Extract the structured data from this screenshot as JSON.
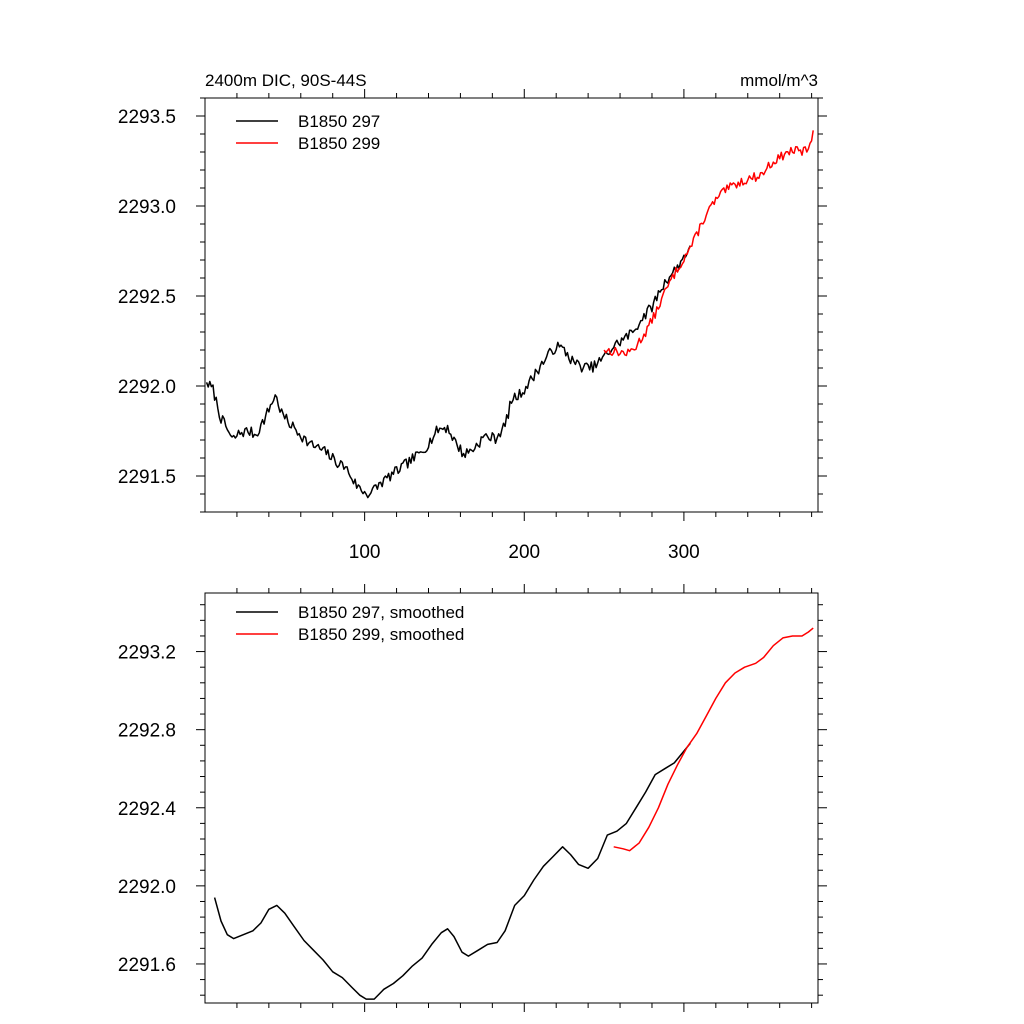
{
  "chart_data": [
    {
      "type": "line",
      "title": "2400m DIC, 90S-44S",
      "units": "mmol/m^3",
      "xlim": [
        0,
        384
      ],
      "ylim": [
        2291.3,
        2293.6
      ],
      "xticks": [
        100,
        200,
        300
      ],
      "xtick_labels": [
        "100",
        "200",
        "300"
      ],
      "yticks": [
        2291.5,
        2292.0,
        2292.5,
        2293.0,
        2293.5
      ],
      "ytick_labels": [
        "2291.5",
        "2292.0",
        "2292.5",
        "2293.0",
        "2293.5"
      ],
      "legend_position": "top-left",
      "series": [
        {
          "name": "B1850 297",
          "color": "#000000",
          "noise": 0.03,
          "seed": 7,
          "points": [
            [
              1,
              2292.02
            ],
            [
              5,
              2291.98
            ],
            [
              10,
              2291.82
            ],
            [
              14,
              2291.76
            ],
            [
              17,
              2291.7
            ],
            [
              22,
              2291.74
            ],
            [
              27,
              2291.75
            ],
            [
              32,
              2291.73
            ],
            [
              38,
              2291.83
            ],
            [
              44,
              2291.95
            ],
            [
              48,
              2291.85
            ],
            [
              52,
              2291.8
            ],
            [
              60,
              2291.73
            ],
            [
              65,
              2291.68
            ],
            [
              70,
              2291.66
            ],
            [
              76,
              2291.63
            ],
            [
              82,
              2291.58
            ],
            [
              88,
              2291.55
            ],
            [
              94,
              2291.46
            ],
            [
              98,
              2291.42
            ],
            [
              103,
              2291.4
            ],
            [
              110,
              2291.46
            ],
            [
              116,
              2291.5
            ],
            [
              122,
              2291.54
            ],
            [
              128,
              2291.58
            ],
            [
              134,
              2291.62
            ],
            [
              140,
              2291.68
            ],
            [
              146,
              2291.76
            ],
            [
              152,
              2291.77
            ],
            [
              156,
              2291.7
            ],
            [
              162,
              2291.62
            ],
            [
              168,
              2291.65
            ],
            [
              175,
              2291.72
            ],
            [
              182,
              2291.71
            ],
            [
              188,
              2291.78
            ],
            [
              192,
              2291.92
            ],
            [
              198,
              2291.96
            ],
            [
              204,
              2292.03
            ],
            [
              210,
              2292.11
            ],
            [
              215,
              2292.17
            ],
            [
              220,
              2292.22
            ],
            [
              225,
              2292.2
            ],
            [
              230,
              2292.14
            ],
            [
              235,
              2292.11
            ],
            [
              240,
              2292.1
            ],
            [
              244,
              2292.11
            ],
            [
              250,
              2292.16
            ],
            [
              256,
              2292.22
            ],
            [
              262,
              2292.26
            ],
            [
              268,
              2292.3
            ],
            [
              274,
              2292.38
            ],
            [
              280,
              2292.44
            ],
            [
              285,
              2292.53
            ],
            [
              290,
              2292.6
            ],
            [
              296,
              2292.66
            ],
            [
              300,
              2292.72
            ],
            [
              304,
              2292.78
            ]
          ]
        },
        {
          "name": "B1850 299",
          "color": "#ff0000",
          "noise": 0.025,
          "seed": 13,
          "points": [
            [
              250,
              2292.2
            ],
            [
              258,
              2292.19
            ],
            [
              265,
              2292.18
            ],
            [
              270,
              2292.22
            ],
            [
              276,
              2292.3
            ],
            [
              282,
              2292.4
            ],
            [
              288,
              2292.52
            ],
            [
              294,
              2292.62
            ],
            [
              300,
              2292.71
            ],
            [
              306,
              2292.8
            ],
            [
              312,
              2292.92
            ],
            [
              318,
              2293.01
            ],
            [
              325,
              2293.08
            ],
            [
              332,
              2293.12
            ],
            [
              340,
              2293.15
            ],
            [
              348,
              2293.17
            ],
            [
              355,
              2293.24
            ],
            [
              362,
              2293.28
            ],
            [
              368,
              2293.31
            ],
            [
              374,
              2293.3
            ],
            [
              378,
              2293.32
            ],
            [
              381,
              2293.42
            ]
          ]
        }
      ]
    },
    {
      "type": "line",
      "title": "",
      "units": "",
      "xlim": [
        0,
        384
      ],
      "ylim": [
        2291.4,
        2293.5
      ],
      "xticks": [
        100,
        200,
        300
      ],
      "xtick_labels": [
        "",
        "",
        ""
      ],
      "yticks": [
        2291.6,
        2292.0,
        2292.4,
        2292.8,
        2293.2
      ],
      "ytick_labels": [
        "2291.6",
        "2292.0",
        "2292.4",
        "2292.8",
        "2293.2"
      ],
      "legend_position": "top-left",
      "series": [
        {
          "name": "B1850 297, smoothed",
          "color": "#000000",
          "noise": 0,
          "seed": 0,
          "points": [
            [
              6,
              2291.94
            ],
            [
              10,
              2291.82
            ],
            [
              14,
              2291.75
            ],
            [
              18,
              2291.73
            ],
            [
              24,
              2291.75
            ],
            [
              30,
              2291.77
            ],
            [
              35,
              2291.81
            ],
            [
              40,
              2291.88
            ],
            [
              45,
              2291.9
            ],
            [
              50,
              2291.86
            ],
            [
              56,
              2291.79
            ],
            [
              62,
              2291.72
            ],
            [
              68,
              2291.67
            ],
            [
              74,
              2291.62
            ],
            [
              80,
              2291.56
            ],
            [
              86,
              2291.53
            ],
            [
              92,
              2291.48
            ],
            [
              97,
              2291.44
            ],
            [
              101,
              2291.42
            ],
            [
              106,
              2291.42
            ],
            [
              112,
              2291.47
            ],
            [
              118,
              2291.5
            ],
            [
              124,
              2291.54
            ],
            [
              130,
              2291.59
            ],
            [
              136,
              2291.63
            ],
            [
              142,
              2291.7
            ],
            [
              148,
              2291.76
            ],
            [
              152,
              2291.78
            ],
            [
              156,
              2291.74
            ],
            [
              161,
              2291.66
            ],
            [
              165,
              2291.64
            ],
            [
              171,
              2291.67
            ],
            [
              177,
              2291.7
            ],
            [
              183,
              2291.71
            ],
            [
              188,
              2291.77
            ],
            [
              194,
              2291.9
            ],
            [
              200,
              2291.95
            ],
            [
              206,
              2292.03
            ],
            [
              212,
              2292.1
            ],
            [
              218,
              2292.15
            ],
            [
              224,
              2292.2
            ],
            [
              229,
              2292.16
            ],
            [
              234,
              2292.11
            ],
            [
              240,
              2292.09
            ],
            [
              246,
              2292.14
            ],
            [
              252,
              2292.26
            ],
            [
              258,
              2292.28
            ],
            [
              264,
              2292.32
            ],
            [
              270,
              2292.4
            ],
            [
              276,
              2292.48
            ],
            [
              282,
              2292.57
            ],
            [
              288,
              2292.6
            ],
            [
              294,
              2292.63
            ],
            [
              300,
              2292.69
            ],
            [
              304,
              2292.73
            ]
          ]
        },
        {
          "name": "B1850 299, smoothed",
          "color": "#ff0000",
          "noise": 0,
          "seed": 0,
          "points": [
            [
              256,
              2292.2
            ],
            [
              262,
              2292.19
            ],
            [
              266,
              2292.18
            ],
            [
              272,
              2292.22
            ],
            [
              278,
              2292.3
            ],
            [
              284,
              2292.4
            ],
            [
              290,
              2292.52
            ],
            [
              296,
              2292.62
            ],
            [
              302,
              2292.71
            ],
            [
              308,
              2292.78
            ],
            [
              314,
              2292.87
            ],
            [
              320,
              2292.96
            ],
            [
              326,
              2293.04
            ],
            [
              332,
              2293.09
            ],
            [
              338,
              2293.12
            ],
            [
              345,
              2293.14
            ],
            [
              350,
              2293.17
            ],
            [
              356,
              2293.23
            ],
            [
              362,
              2293.27
            ],
            [
              368,
              2293.28
            ],
            [
              374,
              2293.28
            ],
            [
              378,
              2293.3
            ],
            [
              381,
              2293.32
            ]
          ]
        }
      ]
    }
  ]
}
